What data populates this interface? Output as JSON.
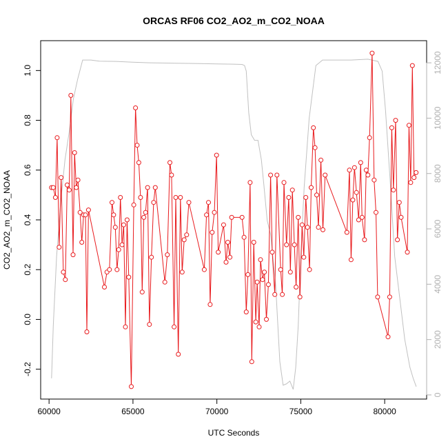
{
  "chart_data": {
    "type": "line",
    "title": "ORCAS RF06 CO2_AO2_m_CO2_NOAA",
    "xlabel": "UTC Seconds",
    "ylabel": "CO2_AO2_m_CO2_NOAA",
    "xlim": [
      59500,
      82500
    ],
    "ylim": [
      -0.32,
      1.12
    ],
    "y2lim": [
      -150,
      12800
    ],
    "x_ticks": [
      60000,
      65000,
      70000,
      75000,
      80000
    ],
    "y_ticks": [
      -0.2,
      0.0,
      0.2,
      0.4,
      0.6,
      0.8,
      1.0
    ],
    "y2_ticks": [
      0,
      2000,
      4000,
      6000,
      8000,
      10000,
      12000
    ],
    "x_tick_labels": [
      "60000",
      "65000",
      "70000",
      "75000",
      "80000"
    ],
    "y_tick_labels": [
      "-0.2",
      "0.0",
      "0.2",
      "0.4",
      "0.6",
      "0.8",
      "1.0"
    ],
    "y2_tick_labels": [
      "0",
      "2000",
      "4000",
      "6000",
      "8000",
      "10000",
      "12000"
    ],
    "colors": {
      "series": "#e8191c",
      "altitude": "#c0c0c0",
      "axis_right": "#b0b0b0"
    },
    "series": [
      {
        "values_xy": [
          [
            60150,
            0.53
          ],
          [
            60250,
            0.53
          ],
          [
            60380,
            0.49
          ],
          [
            60480,
            0.73
          ],
          [
            60600,
            0.29
          ],
          [
            60720,
            0.57
          ],
          [
            60850,
            0.19
          ],
          [
            60970,
            0.16
          ],
          [
            61080,
            0.54
          ],
          [
            61200,
            0.52
          ],
          [
            61300,
            0.9
          ],
          [
            61430,
            0.26
          ],
          [
            61520,
            0.67
          ],
          [
            61620,
            0.53
          ],
          [
            61720,
            0.56
          ],
          [
            61850,
            0.43
          ],
          [
            61950,
            0.31
          ],
          [
            62060,
            0.42
          ],
          [
            62170,
            0.42
          ],
          [
            62250,
            -0.05
          ],
          [
            62350,
            0.44
          ],
          [
            63300,
            0.13
          ],
          [
            63450,
            0.19
          ],
          [
            63600,
            0.2
          ],
          [
            63750,
            0.47
          ],
          [
            63850,
            0.42
          ],
          [
            63950,
            0.37
          ],
          [
            64050,
            0.2
          ],
          [
            64150,
            0.28
          ],
          [
            64250,
            0.49
          ],
          [
            64350,
            0.3
          ],
          [
            64450,
            0.38
          ],
          [
            64550,
            -0.03
          ],
          [
            64650,
            0.4
          ],
          [
            64750,
            0.17
          ],
          [
            64900,
            -0.27
          ],
          [
            65050,
            0.46
          ],
          [
            65150,
            0.85
          ],
          [
            65250,
            0.7
          ],
          [
            65350,
            0.63
          ],
          [
            65450,
            0.49
          ],
          [
            65550,
            0.11
          ],
          [
            65650,
            0.41
          ],
          [
            65750,
            0.43
          ],
          [
            65870,
            0.53
          ],
          [
            65980,
            -0.02
          ],
          [
            66100,
            0.25
          ],
          [
            66230,
            0.47
          ],
          [
            66330,
            0.53
          ],
          [
            66900,
            0.15
          ],
          [
            67050,
            0.26
          ],
          [
            67200,
            0.63
          ],
          [
            67300,
            0.58
          ],
          [
            67450,
            -0.03
          ],
          [
            67550,
            0.49
          ],
          [
            67700,
            -0.14
          ],
          [
            67830,
            0.49
          ],
          [
            67930,
            0.19
          ],
          [
            68050,
            0.32
          ],
          [
            68200,
            0.34
          ],
          [
            68330,
            0.47
          ],
          [
            69250,
            0.2
          ],
          [
            69380,
            0.42
          ],
          [
            69500,
            0.47
          ],
          [
            69600,
            0.06
          ],
          [
            69720,
            0.35
          ],
          [
            69850,
            0.43
          ],
          [
            69980,
            0.66
          ],
          [
            70080,
            0.27
          ],
          [
            70400,
            0.38
          ],
          [
            70550,
            0.23
          ],
          [
            70650,
            0.31
          ],
          [
            70780,
            0.25
          ],
          [
            70880,
            0.41
          ],
          [
            71500,
            0.41
          ],
          [
            71620,
            0.33
          ],
          [
            71750,
            0.03
          ],
          [
            71850,
            0.18
          ],
          [
            71980,
            0.55
          ],
          [
            72080,
            -0.17
          ],
          [
            72200,
            0.31
          ],
          [
            72320,
            -0.01
          ],
          [
            72400,
            0.15
          ],
          [
            72520,
            -0.03
          ],
          [
            72600,
            0.24
          ],
          [
            72720,
            0.16
          ],
          [
            72830,
            0.19
          ],
          [
            72950,
            0.0
          ],
          [
            73070,
            0.14
          ],
          [
            73200,
            0.58
          ],
          [
            73300,
            0.27
          ],
          [
            73450,
            0.1
          ],
          [
            73580,
            0.58
          ],
          [
            73800,
            0.2
          ],
          [
            73900,
            0.1
          ],
          [
            74000,
            0.55
          ],
          [
            74150,
            0.3
          ],
          [
            74280,
            0.49
          ],
          [
            74380,
            0.19
          ],
          [
            74500,
            0.52
          ],
          [
            74620,
            0.3
          ],
          [
            74720,
            0.13
          ],
          [
            74850,
            0.41
          ],
          [
            74950,
            0.09
          ],
          [
            75080,
            0.38
          ],
          [
            75180,
            0.25
          ],
          [
            75300,
            0.49
          ],
          [
            75400,
            0.37
          ],
          [
            75520,
            0.2
          ],
          [
            75620,
            0.53
          ],
          [
            75750,
            0.77
          ],
          [
            75850,
            0.69
          ],
          [
            75950,
            0.5
          ],
          [
            76050,
            0.37
          ],
          [
            76200,
            0.64
          ],
          [
            76320,
            0.36
          ],
          [
            76450,
            0.58
          ],
          [
            77750,
            0.35
          ],
          [
            77900,
            0.6
          ],
          [
            78000,
            0.24
          ],
          [
            78100,
            0.48
          ],
          [
            78200,
            0.61
          ],
          [
            78320,
            0.51
          ],
          [
            78450,
            0.4
          ],
          [
            78570,
            0.63
          ],
          [
            78650,
            0.41
          ],
          [
            78800,
            0.32
          ],
          [
            78900,
            0.6
          ],
          [
            79000,
            0.58
          ],
          [
            79100,
            0.73
          ],
          [
            79250,
            1.07
          ],
          [
            79370,
            0.56
          ],
          [
            79480,
            0.43
          ],
          [
            79580,
            0.09
          ],
          [
            80200,
            -0.07
          ],
          [
            80300,
            0.09
          ],
          [
            80420,
            0.77
          ],
          [
            80520,
            0.52
          ],
          [
            80650,
            0.8
          ],
          [
            80760,
            0.32
          ],
          [
            80870,
            0.47
          ],
          [
            80980,
            0.41
          ],
          [
            81350,
            0.27
          ],
          [
            81450,
            0.78
          ],
          [
            81550,
            0.55
          ],
          [
            81650,
            1.02
          ],
          [
            81750,
            0.57
          ],
          [
            81870,
            0.59
          ]
        ]
      },
      {
        "axis": "right",
        "values_xy": [
          [
            60150,
            600
          ],
          [
            60250,
            2500
          ],
          [
            60450,
            5000
          ],
          [
            60700,
            7000
          ],
          [
            60950,
            8500
          ],
          [
            61200,
            9500
          ],
          [
            61450,
            10700
          ],
          [
            61700,
            11400
          ],
          [
            62000,
            12100
          ],
          [
            62500,
            12100
          ],
          [
            63000,
            12060
          ],
          [
            64000,
            12050
          ],
          [
            65000,
            12020
          ],
          [
            66000,
            12000
          ],
          [
            67000,
            11990
          ],
          [
            68000,
            11980
          ],
          [
            69000,
            11970
          ],
          [
            70000,
            11960
          ],
          [
            71000,
            11950
          ],
          [
            71500,
            11940
          ],
          [
            71650,
            11900
          ],
          [
            71750,
            11700
          ],
          [
            71900,
            10200
          ],
          [
            72050,
            9400
          ],
          [
            72250,
            9200
          ],
          [
            72450,
            9200
          ],
          [
            72650,
            8500
          ],
          [
            72800,
            7600
          ],
          [
            73000,
            6300
          ],
          [
            73200,
            5800
          ],
          [
            73500,
            4000
          ],
          [
            73750,
            1200
          ],
          [
            73950,
            350
          ],
          [
            74150,
            400
          ],
          [
            74350,
            500
          ],
          [
            74550,
            200
          ],
          [
            74700,
            1000
          ],
          [
            74850,
            2500
          ],
          [
            75000,
            5000
          ],
          [
            75200,
            7500
          ],
          [
            75500,
            10000
          ],
          [
            75900,
            11900
          ],
          [
            76300,
            12100
          ],
          [
            77000,
            12100
          ],
          [
            78000,
            12100
          ],
          [
            79000,
            12130
          ],
          [
            79600,
            12050
          ],
          [
            79850,
            11700
          ],
          [
            80050,
            10300
          ],
          [
            80300,
            8000
          ],
          [
            80600,
            5000
          ],
          [
            80900,
            3500
          ],
          [
            81200,
            2000
          ],
          [
            81500,
            1000
          ],
          [
            81700,
            600
          ],
          [
            81880,
            300
          ]
        ]
      }
    ]
  }
}
